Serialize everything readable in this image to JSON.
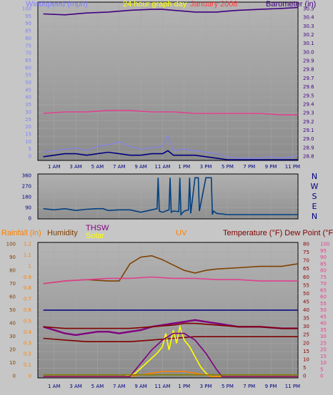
{
  "chart_data": [
    {
      "id": "wind-baro",
      "type": "line",
      "title": "24 hour graph day",
      "overlay_text": "January 2008",
      "ylabel_left": "Windspeed (mph)",
      "ylabel_right": "Barometer (in)",
      "ylim_left": [
        0,
        105
      ],
      "ylim_right": [
        28.8,
        30.5
      ],
      "yticks_left": [
        "100",
        "95",
        "90",
        "85",
        "80",
        "75",
        "70",
        "65",
        "60",
        "55",
        "50",
        "45",
        "40",
        "35",
        "30",
        "25",
        "20",
        "15",
        "10",
        "5",
        "0"
      ],
      "yticks_right": [
        "30.5",
        "30.4",
        "30.3",
        "30.2",
        "30.1",
        "30.0",
        "29.9",
        "29.8",
        "29.7",
        "29.6",
        "29.5",
        "29.4",
        "29.3",
        "29.2",
        "29.1",
        "29.0",
        "28.9",
        "28.8"
      ],
      "xticks": [
        "1 AM",
        "3 AM",
        "5 AM",
        "7 AM",
        "9 AM",
        "11 AM",
        "1 PM",
        "3 PM",
        "5 PM",
        "7 PM",
        "9 PM",
        "11 PM"
      ],
      "colors": {
        "barometer": "#400080",
        "temp_line": "#e0408f",
        "gust": "#8080ff",
        "speed": "#000080",
        "green": "#008000",
        "wind_axis": "#8080ff",
        "baro_axis": "#400080",
        "title": "#ffff00",
        "date": "#ff4040"
      },
      "series": [
        {
          "name": "Barometer",
          "axis": "right",
          "x": [
            0,
            2,
            4,
            6,
            8,
            10,
            11,
            12,
            14,
            16,
            17,
            18,
            20,
            22,
            23.5
          ],
          "values": [
            30.38,
            30.37,
            30.39,
            30.4,
            30.42,
            30.43,
            30.43,
            30.42,
            30.4,
            30.4,
            30.41,
            30.42,
            30.43,
            30.44,
            30.45
          ]
        },
        {
          "name": "",
          "axis": "left",
          "color_key": "temp_line",
          "x": [
            0,
            2,
            4,
            6,
            8,
            10,
            12,
            14,
            16,
            18,
            20,
            22,
            23.5
          ],
          "values": [
            31,
            32,
            32,
            33,
            33,
            32,
            32,
            31,
            31,
            31,
            31,
            30,
            30
          ]
        },
        {
          "name": "",
          "axis": "left",
          "color_key": "gust",
          "x": [
            0,
            1,
            2,
            3,
            4,
            5,
            6,
            7,
            8,
            9,
            10,
            11,
            11.5,
            12,
            13,
            14,
            15,
            16,
            17,
            18,
            19,
            20,
            21,
            22,
            23,
            23.5
          ],
          "values": [
            5,
            6,
            7,
            8,
            6,
            9,
            10,
            12,
            9,
            7,
            8,
            9,
            16,
            6,
            7,
            6,
            5,
            4,
            2,
            1,
            1,
            1,
            2,
            1,
            2,
            3
          ]
        },
        {
          "name": "",
          "axis": "left",
          "color_key": "speed",
          "x": [
            0,
            1,
            2,
            3,
            4,
            5,
            6,
            7,
            8,
            9,
            10,
            11,
            11.5,
            12,
            13,
            14,
            15,
            16,
            17,
            18,
            19,
            20,
            21,
            22,
            23,
            23.5
          ],
          "values": [
            2,
            3,
            4,
            4,
            3,
            4,
            5,
            4,
            3,
            3,
            4,
            4,
            6,
            3,
            3,
            3,
            2,
            1,
            0,
            0,
            0,
            0,
            0,
            0,
            0,
            0
          ]
        }
      ]
    },
    {
      "id": "wind-dir",
      "type": "line",
      "ylim": [
        0,
        360
      ],
      "yticks": [
        "360",
        "270",
        "180",
        "90",
        "0"
      ],
      "compass": [
        "N",
        "W",
        "S",
        "E",
        "N"
      ],
      "xticks": [
        "1 AM",
        "3 AM",
        "5 AM",
        "7 AM",
        "9 AM",
        "11 AM",
        "1 PM",
        "3 PM",
        "5 PM",
        "7 PM",
        "9 PM",
        "11 PM"
      ],
      "colors": {
        "direction": "#004080"
      },
      "series": [
        {
          "name": "",
          "x": [
            0,
            1,
            2,
            3,
            4,
            5,
            5.5,
            6,
            7,
            8,
            9,
            10,
            10.5,
            10.6,
            10.7,
            11,
            11.6,
            11.7,
            11.8,
            12,
            12.5,
            12.6,
            12.7,
            13,
            13.4,
            13.5,
            13.6,
            14,
            14.2,
            14.3,
            14.4,
            15,
            15.5,
            15.6,
            15.7,
            16,
            17,
            18,
            20,
            22,
            23.5
          ],
          "values": [
            80,
            70,
            80,
            65,
            75,
            80,
            80,
            65,
            70,
            70,
            50,
            70,
            80,
            340,
            60,
            50,
            70,
            340,
            50,
            60,
            55,
            340,
            30,
            60,
            70,
            340,
            40,
            340,
            340,
            340,
            60,
            340,
            340,
            30,
            60,
            40,
            30,
            30,
            30,
            30,
            30
          ]
        }
      ]
    },
    {
      "id": "rain-temp",
      "type": "line",
      "labels": {
        "rain": "Rainfall (in)",
        "humidity": "Humidity",
        "thsw": "THSW",
        "solar": "Solar",
        "uv": "UV",
        "temp": "Temperature (°F) Dew Point (°F)"
      },
      "ylim_humidity": [
        0,
        100
      ],
      "ylim_rain": [
        0,
        1.2
      ],
      "ylim_temp": [
        0,
        80
      ],
      "yticks_humidity": [
        "100",
        "90",
        "80",
        "70",
        "60",
        "50",
        "40",
        "30",
        "20",
        "10",
        "0"
      ],
      "yticks_rain": [
        "1.2",
        "1.1",
        "1",
        "0.9",
        "0.8",
        "0.7",
        "0.6",
        "0.5",
        "0.4",
        "0.3",
        "0.2",
        "0.1",
        "0"
      ],
      "yticks_temp": [
        "80",
        "75",
        "70",
        "65",
        "60",
        "55",
        "50",
        "45",
        "40",
        "35",
        "30",
        "25",
        "20",
        "15",
        "10",
        "5",
        "0"
      ],
      "yticks_far_right": [
        "100",
        "95",
        "90",
        "85",
        "80",
        "75",
        "70",
        "65",
        "60",
        "55",
        "50",
        "45",
        "40",
        "35",
        "30",
        "25",
        "20",
        "15",
        "10",
        "5",
        "0"
      ],
      "xticks": [
        "1 AM",
        "3 AM",
        "5 AM",
        "7 AM",
        "9 AM",
        "11 AM",
        "1 PM",
        "3 PM",
        "5 PM",
        "7 PM",
        "9 PM",
        "11 PM"
      ],
      "colors": {
        "rain": "#ff8000",
        "humidity": "#804000",
        "thsw": "#800080",
        "solar": "#ffff00",
        "uv": "#ff8000",
        "temp": "#800000",
        "dew": "#800000",
        "pink": "#e0408f",
        "blue": "#000080",
        "olive": "#808000"
      },
      "series": [
        {
          "name": "Humidity",
          "axis": "humidity",
          "x": [
            0,
            2,
            4,
            6,
            7,
            8,
            9,
            10,
            11,
            12,
            13,
            14,
            15,
            16,
            18,
            20,
            22,
            23.5
          ],
          "values": [
            70,
            72,
            73,
            72,
            72,
            85,
            90,
            91,
            88,
            84,
            80,
            78,
            80,
            81,
            82,
            83,
            83,
            85
          ]
        },
        {
          "name": "",
          "axis": "humidity",
          "color_key": "pink",
          "x": [
            0,
            2,
            4,
            6,
            8,
            10,
            12,
            14,
            16,
            18,
            20,
            22,
            23.5
          ],
          "values": [
            70,
            72,
            73,
            74,
            74,
            75,
            74,
            74,
            73,
            73,
            72,
            72,
            72
          ]
        },
        {
          "name": "",
          "axis": "temp",
          "color_key": "blue",
          "x": [
            0,
            23.5
          ],
          "values": [
            40,
            40
          ]
        },
        {
          "name": "THSW",
          "axis": "temp",
          "x": [
            0,
            1,
            2,
            3,
            4,
            5,
            6,
            7,
            8,
            9,
            10,
            11,
            12,
            13,
            14,
            15,
            16,
            17,
            18,
            20,
            22,
            23.5
          ],
          "values": [
            30,
            28,
            26,
            25,
            26,
            27,
            27,
            26,
            27,
            28,
            30,
            31,
            32,
            33,
            34,
            33,
            32,
            31,
            30,
            30,
            29,
            29
          ]
        },
        {
          "name": "Temperature",
          "axis": "temp",
          "x": [
            0,
            2,
            4,
            6,
            8,
            10,
            12,
            13,
            14,
            16,
            18,
            20,
            22,
            23.5
          ],
          "values": [
            30,
            29,
            29,
            29,
            29,
            30,
            31,
            32,
            32,
            31,
            30,
            30,
            29,
            29
          ]
        },
        {
          "name": "Dew Point",
          "axis": "temp",
          "x": [
            0,
            2,
            4,
            6,
            8,
            10,
            12,
            14,
            16,
            18,
            20,
            22,
            23.5
          ],
          "values": [
            23,
            22,
            21,
            21,
            21,
            22,
            23,
            24,
            24,
            24,
            24,
            24,
            24
          ]
        },
        {
          "name": "Solar",
          "axis": "temp",
          "x": [
            0,
            7.5,
            8.5,
            9.5,
            10.5,
            11,
            11.3,
            11.6,
            12,
            12.3,
            12.6,
            13,
            13.5,
            14,
            14.5,
            15,
            15.5,
            16,
            23.5
          ],
          "values": [
            0,
            0,
            2,
            8,
            14,
            18,
            26,
            16,
            28,
            20,
            30,
            22,
            18,
            12,
            6,
            2,
            0,
            0,
            0
          ]
        },
        {
          "name": "UV",
          "axis": "temp",
          "x": [
            0,
            8,
            9,
            10,
            11,
            12,
            13,
            14,
            15,
            15.5,
            16,
            23.5
          ],
          "values": [
            0,
            0,
            1,
            2,
            3,
            3,
            3,
            2,
            1,
            0,
            0,
            0
          ]
        },
        {
          "name": "",
          "axis": "temp",
          "color_key": "thsw",
          "x": [
            0,
            8,
            9,
            10,
            11,
            12,
            13,
            14,
            15,
            16,
            16.5,
            23.5
          ],
          "values": [
            0,
            0,
            8,
            16,
            22,
            26,
            26,
            22,
            14,
            4,
            0,
            0
          ]
        },
        {
          "name": "",
          "axis": "temp",
          "color_key": "olive",
          "x": [
            0,
            23.5
          ],
          "values": [
            1,
            1
          ]
        }
      ]
    }
  ]
}
